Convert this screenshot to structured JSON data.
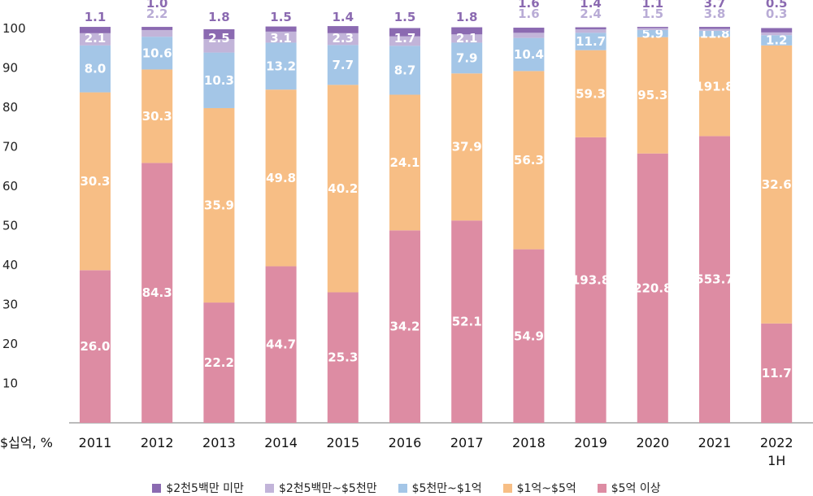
{
  "chart_data": {
    "type": "bar",
    "stacked": true,
    "normalized_percent": true,
    "unit_label": "$십억, %",
    "categories": [
      "2011",
      "2012",
      "2013",
      "2014",
      "2015",
      "2016",
      "2017",
      "2018",
      "2019",
      "2020",
      "2021",
      "2022\n1H"
    ],
    "ylim": [
      0,
      100
    ],
    "yticks": [
      10,
      20,
      30,
      40,
      50,
      60,
      70,
      80,
      90,
      100
    ],
    "series": [
      {
        "name": "$5억 이상",
        "color": "#dd8ca3",
        "percent": [
          38.7,
          65.9,
          30.5,
          39.7,
          33.1,
          48.8,
          51.3,
          44.0,
          72.4,
          68.3,
          72.7,
          25.2
        ],
        "labels": [
          "26.0",
          "84.3",
          "22.2",
          "44.7",
          "25.3",
          "34.2",
          "52.1",
          "54.9",
          "193.8",
          "220.8",
          "553.7",
          "11.7"
        ]
      },
      {
        "name": "$1억~$5억",
        "color": "#f7be85",
        "percent": [
          45.1,
          23.7,
          49.3,
          44.8,
          52.6,
          34.4,
          37.3,
          45.2,
          22.1,
          29.5,
          25.2,
          70.5
        ],
        "labels": [
          "30.3",
          "30.3",
          "35.9",
          "49.8",
          "40.2",
          "24.1",
          "37.9",
          "56.3",
          "59.3",
          "95.3",
          "191.8",
          "32.6"
        ]
      },
      {
        "name": "$5천만~$1억",
        "color": "#a4c6e7",
        "percent": [
          11.9,
          8.3,
          14.1,
          11.9,
          10.1,
          12.4,
          7.8,
          8.4,
          4.4,
          1.8,
          1.5,
          2.6
        ],
        "labels": [
          "8.0",
          "10.6",
          "10.3",
          "13.2",
          "7.7",
          "8.7",
          "7.9",
          "10.4",
          "11.7",
          "5.9",
          "11.8",
          "1.2"
        ]
      },
      {
        "name": "$2천5백만~$5천만",
        "color": "#c2b4d9",
        "percent": [
          3.1,
          1.7,
          3.4,
          2.8,
          3.0,
          2.4,
          2.1,
          1.3,
          0.9,
          0.5,
          0.5,
          0.7
        ],
        "labels": [
          "2.1",
          "2.2",
          "2.5",
          "3.1",
          "2.3",
          "1.7",
          "2.1",
          "1.6",
          "2.4",
          "1.5",
          "3.8",
          "0.3"
        ]
      },
      {
        "name": "$2천5백만 미만",
        "color": "#8b6ab1",
        "percent": [
          1.6,
          0.8,
          2.5,
          1.3,
          1.8,
          2.1,
          1.8,
          1.3,
          0.5,
          0.3,
          0.5,
          1.1
        ],
        "labels": [
          "1.1",
          "1.0",
          "1.8",
          "1.5",
          "1.4",
          "1.5",
          "1.8",
          "1.6",
          "1.4",
          "1.1",
          "3.7",
          "0.5"
        ]
      }
    ]
  }
}
